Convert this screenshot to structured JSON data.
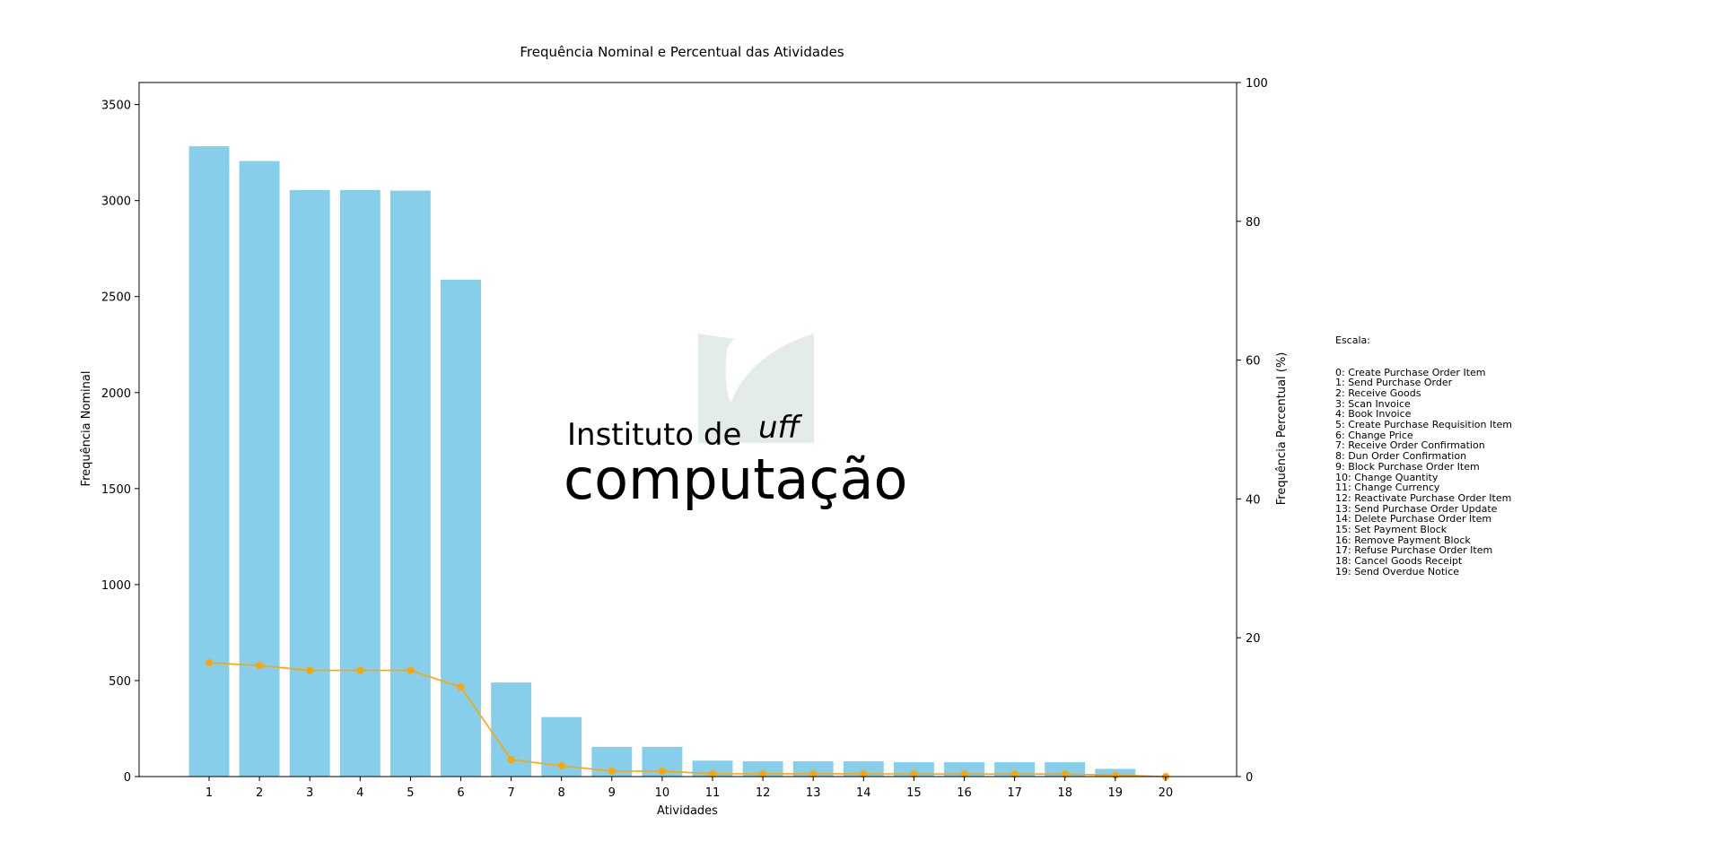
{
  "chart_data": {
    "type": "bar",
    "title": "Frequência Nominal e Percentual das Atividades",
    "xlabel": "Atividades",
    "ylabel": "Frequência Nominal",
    "y2label": "Frequência Percentual (%)",
    "categories": [
      "1",
      "2",
      "3",
      "4",
      "5",
      "6",
      "7",
      "8",
      "9",
      "10",
      "11",
      "12",
      "13",
      "14",
      "15",
      "16",
      "17",
      "18",
      "19",
      "20"
    ],
    "series": [
      {
        "type": "bar",
        "axis": "left",
        "color": "#87ceeb",
        "values": [
          3283,
          3206,
          3055,
          3055,
          3052,
          2588,
          490,
          310,
          155,
          155,
          83,
          80,
          80,
          80,
          75,
          75,
          75,
          75,
          40,
          0
        ]
      },
      {
        "type": "line",
        "axis": "right",
        "color": "#ffa500",
        "marker": "circle",
        "values": [
          16.4,
          16.0,
          15.3,
          15.3,
          15.3,
          12.9,
          2.45,
          1.55,
          0.78,
          0.78,
          0.42,
          0.4,
          0.4,
          0.4,
          0.37,
          0.37,
          0.37,
          0.37,
          0.2,
          0.0
        ]
      }
    ],
    "ylim": [
      0,
      3615
    ],
    "yticks": [
      0,
      500,
      1000,
      1500,
      2000,
      2500,
      3000,
      3500
    ],
    "y2lim": [
      0,
      100
    ],
    "y2ticks": [
      0,
      20,
      40,
      60,
      80,
      100
    ],
    "grid": false,
    "legend_position": "right",
    "legend_title": "Escala:",
    "legend_entries": [
      "0: Create Purchase Order Item",
      "1: Send Purchase Order",
      "2: Receive Goods",
      "3: Scan Invoice",
      "4: Book Invoice",
      "5: Create Purchase Requisition Item",
      "6: Change Price",
      "7: Receive Order Confirmation",
      "8: Dun Order Confirmation",
      "9: Block Purchase Order Item",
      "10: Change Quantity",
      "11: Change Currency",
      "12: Reactivate Purchase Order Item",
      "13: Send Purchase Order Update",
      "14: Delete Purchase Order Item",
      "15: Set Payment Block",
      "16: Remove Payment Block",
      "17: Refuse Purchase Order Item",
      "18: Cancel Goods Receipt",
      "19: Send Overdue Notice"
    ],
    "watermark": {
      "line1": "Instituto de",
      "line2": "computação",
      "logo_text": "uff",
      "color": "#e3ece8"
    }
  }
}
